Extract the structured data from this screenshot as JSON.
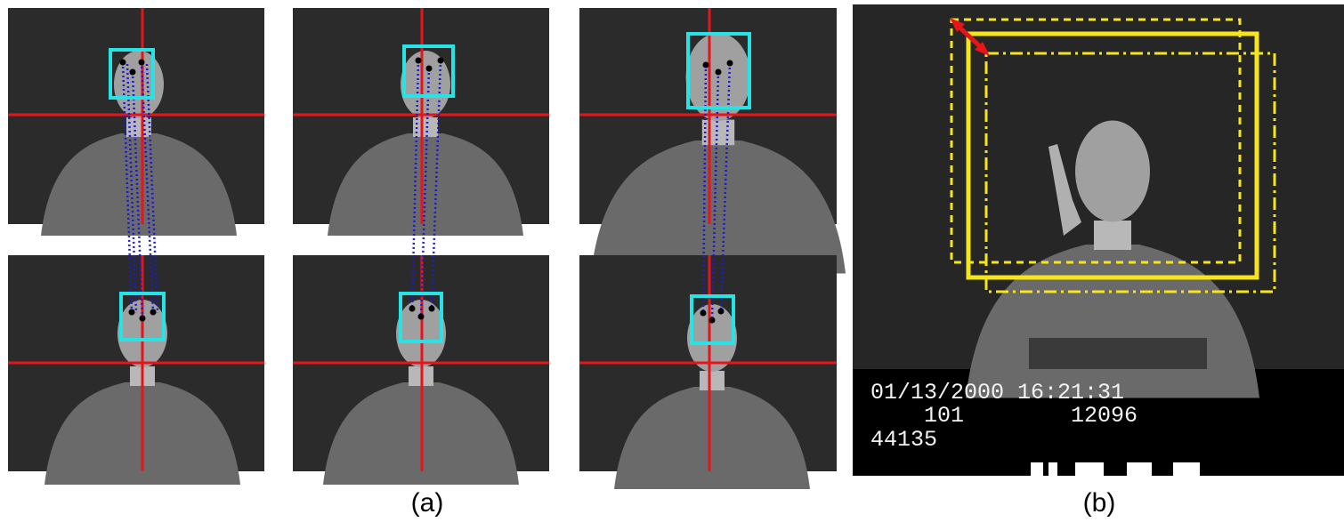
{
  "figure": {
    "panel_a_label": "(a)",
    "panel_b_label": "(b)",
    "overlay": {
      "date": "01/13/2000",
      "time": "16:21:31",
      "frame_left": "101",
      "frame_right": "12096",
      "counter": "44135"
    }
  }
}
